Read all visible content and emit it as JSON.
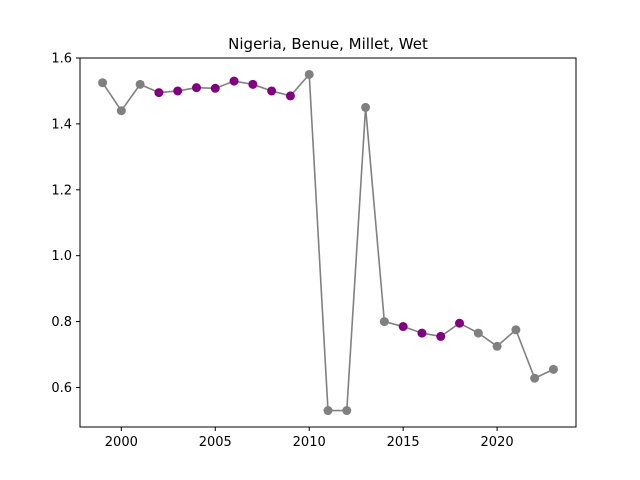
{
  "chart_data": {
    "type": "line",
    "title": "Nigeria, Benue, Millet, Wet",
    "xlabel": "",
    "ylabel": "",
    "xlim": [
      1997.8,
      2024.2
    ],
    "ylim": [
      0.48,
      1.6
    ],
    "x_ticks": [
      2000,
      2005,
      2010,
      2015,
      2020
    ],
    "y_ticks": [
      0.6,
      0.8,
      1.0,
      1.2,
      1.4,
      1.6
    ],
    "x_tick_labels": [
      "2000",
      "2005",
      "2010",
      "2015",
      "2020"
    ],
    "y_tick_labels": [
      "0.6",
      "0.8",
      "1.0",
      "1.2",
      "1.4",
      "1.6"
    ],
    "grid": false,
    "line_color": "#808080",
    "colors": {
      "gray": "#808080",
      "purple": "#800080"
    },
    "points": [
      {
        "x": 1999,
        "y": 1.525,
        "color": "gray"
      },
      {
        "x": 2000,
        "y": 1.44,
        "color": "gray"
      },
      {
        "x": 2001,
        "y": 1.52,
        "color": "gray"
      },
      {
        "x": 2002,
        "y": 1.495,
        "color": "purple"
      },
      {
        "x": 2003,
        "y": 1.5,
        "color": "purple"
      },
      {
        "x": 2004,
        "y": 1.51,
        "color": "purple"
      },
      {
        "x": 2005,
        "y": 1.508,
        "color": "purple"
      },
      {
        "x": 2006,
        "y": 1.53,
        "color": "purple"
      },
      {
        "x": 2007,
        "y": 1.52,
        "color": "purple"
      },
      {
        "x": 2008,
        "y": 1.5,
        "color": "purple"
      },
      {
        "x": 2009,
        "y": 1.485,
        "color": "purple"
      },
      {
        "x": 2010,
        "y": 1.55,
        "color": "gray"
      },
      {
        "x": 2011,
        "y": 0.53,
        "color": "gray"
      },
      {
        "x": 2012,
        "y": 0.53,
        "color": "gray"
      },
      {
        "x": 2013,
        "y": 1.45,
        "color": "gray"
      },
      {
        "x": 2014,
        "y": 0.8,
        "color": "gray"
      },
      {
        "x": 2015,
        "y": 0.785,
        "color": "purple"
      },
      {
        "x": 2016,
        "y": 0.765,
        "color": "purple"
      },
      {
        "x": 2017,
        "y": 0.755,
        "color": "purple"
      },
      {
        "x": 2018,
        "y": 0.795,
        "color": "purple"
      },
      {
        "x": 2019,
        "y": 0.765,
        "color": "gray"
      },
      {
        "x": 2020,
        "y": 0.725,
        "color": "gray"
      },
      {
        "x": 2021,
        "y": 0.775,
        "color": "gray"
      },
      {
        "x": 2022,
        "y": 0.628,
        "color": "gray"
      },
      {
        "x": 2023,
        "y": 0.655,
        "color": "gray"
      }
    ]
  }
}
